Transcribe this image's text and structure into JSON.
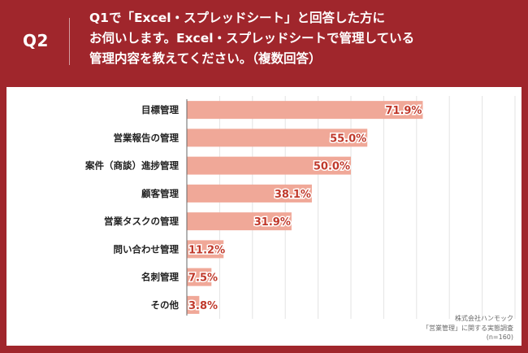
{
  "header": {
    "question_label": "Q2",
    "question_lines": [
      "Q1で「Excel・スプレッドシート」と回答した方に",
      "お伺いします。Excel・スプレッドシートで管理している",
      "管理内容を教えてください。（複数回答）"
    ]
  },
  "chart_data": {
    "type": "bar",
    "orientation": "horizontal",
    "categories": [
      "目標管理",
      "営業報告の管理",
      "案件（商談）進捗管理",
      "顧客管理",
      "営業タスクの管理",
      "問い合わせ管理",
      "名刺管理",
      "その他"
    ],
    "values": [
      71.9,
      55.0,
      50.0,
      38.1,
      31.9,
      11.2,
      7.5,
      3.8
    ],
    "value_labels": [
      "71.9%",
      "55.0%",
      "50.0%",
      "38.1%",
      "31.9%",
      "11.2%",
      "7.5%",
      "3.8%"
    ],
    "xlim": [
      0,
      100
    ],
    "grid": true,
    "bar_color": "#f0a898",
    "label_color": "#c0392b"
  },
  "footer": {
    "lines": [
      "株式会社ハンモック",
      "「営業管理」に関する実態調査",
      "(n=160)"
    ]
  }
}
